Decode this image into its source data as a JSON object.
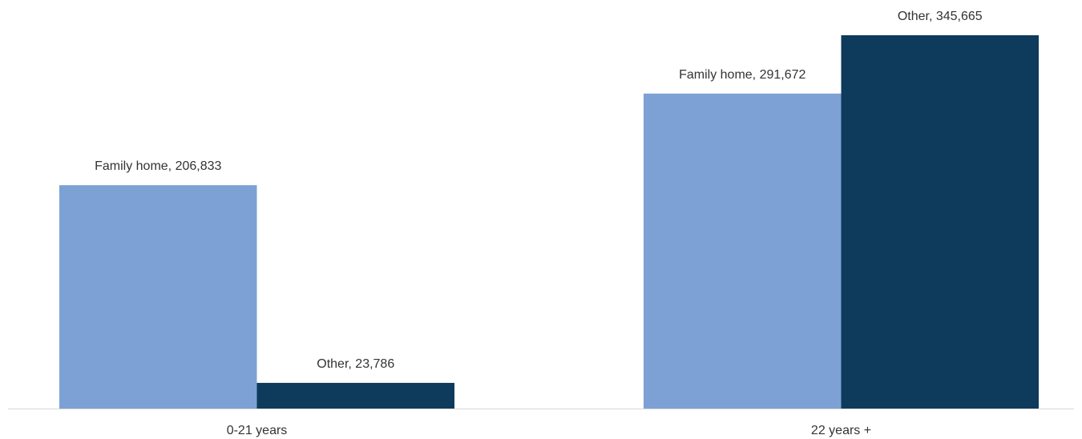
{
  "chart_data": {
    "type": "bar",
    "categories": [
      "0-21 years",
      "22 years +"
    ],
    "series": [
      {
        "name": "Family home",
        "values": [
          206833,
          291672
        ],
        "labels": [
          "Family home, 206,833",
          "Family home, 291,672"
        ],
        "color": "#7da1d4"
      },
      {
        "name": "Other",
        "values": [
          23786,
          345665
        ],
        "labels": [
          "Other, 23,786",
          "Other, 345,665"
        ],
        "color": "#0e3a5b"
      }
    ],
    "ylim": [
      0,
      400000
    ],
    "grid": false,
    "legend": "none",
    "axis_color": "#d9d9d9"
  }
}
